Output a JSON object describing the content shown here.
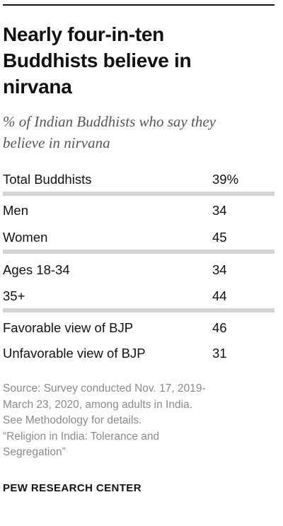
{
  "title_lines": [
    "Nearly four-in-ten",
    "Buddhists believe in",
    "nirvana"
  ],
  "subtitle_lines": [
    "% of Indian Buddhists who say they",
    "believe in nirvana"
  ],
  "chart_data": {
    "type": "table",
    "title": "Nearly four-in-ten Buddhists believe in nirvana",
    "subtitle": "% of Indian Buddhists who say they believe in nirvana",
    "groups": [
      {
        "rows": [
          {
            "label": "Total Buddhists",
            "value": 39,
            "display": "39%"
          }
        ]
      },
      {
        "rows": [
          {
            "label": "Men",
            "value": 34,
            "display": "34"
          },
          {
            "label": "Women",
            "value": 45,
            "display": "45"
          }
        ]
      },
      {
        "rows": [
          {
            "label": "Ages 18-34",
            "value": 34,
            "display": "34"
          },
          {
            "label": "35+",
            "value": 44,
            "display": "44"
          }
        ]
      },
      {
        "rows": [
          {
            "label": "Favorable view of BJP",
            "value": 46,
            "display": "46"
          },
          {
            "label": "Unfavorable view of BJP",
            "value": 31,
            "display": "31"
          }
        ]
      }
    ]
  },
  "source_lines": [
    "Source: Survey conducted Nov. 17, 2019-",
    "March 23, 2020, among adults in India.",
    "See Methodology for details.",
    "“Religion in India: Tolerance and",
    "Segregation”"
  ],
  "credit": "PEW RESEARCH CENTER"
}
